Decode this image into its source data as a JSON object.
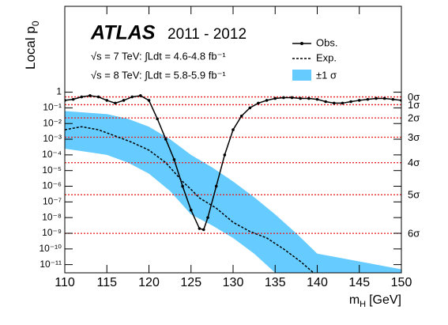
{
  "chart_data": {
    "type": "line",
    "log_y": true,
    "brand": "ATLAS",
    "period": "2011 - 2012",
    "notes": [
      "√s = 7 TeV: ∫Ldt = 4.6-4.8 fb⁻¹",
      "√s = 8 TeV: ∫Ldt = 5.8-5.9 fb⁻¹"
    ],
    "x_label": {
      "main": "m",
      "sub": "H",
      "unit": "[GeV]"
    },
    "y_label": {
      "main": "Local p",
      "sub": "0"
    },
    "xlim": [
      110,
      150
    ],
    "xticks": [
      110,
      115,
      120,
      125,
      130,
      135,
      140,
      145,
      150
    ],
    "ylim": [
      3e-12,
      300000
    ],
    "yticks": [
      1,
      {
        "value": 0.1,
        "label": "10⁻¹"
      },
      {
        "value": 0.01,
        "label": "10⁻²"
      },
      {
        "value": 0.001,
        "label": "10⁻³"
      },
      {
        "value": 0.0001,
        "label": "10⁻⁴"
      },
      {
        "value": 1e-05,
        "label": "10⁻⁵"
      },
      {
        "value": 1e-06,
        "label": "10⁻⁶"
      },
      {
        "value": 1e-07,
        "label": "10⁻⁷"
      },
      {
        "value": 1e-08,
        "label": "10⁻⁸"
      },
      {
        "value": 1e-09,
        "label": "10⁻⁹"
      },
      {
        "value": 1e-10,
        "label": "10⁻¹⁰"
      },
      {
        "value": 1e-11,
        "label": "10⁻¹¹"
      }
    ],
    "sigma_lines": {
      "color": "#e8191c",
      "labels": [
        "0σ",
        "1σ",
        "2σ",
        "3σ",
        "4σ",
        "5σ",
        "6σ"
      ],
      "values": [
        0.5,
        0.1587,
        0.02275,
        0.00135,
        3.17e-05,
        2.87e-07,
        9.87e-10
      ]
    },
    "band": {
      "name": "±1 σ",
      "color": "#66ccff",
      "x": [
        110,
        112.5,
        115,
        117.5,
        120,
        122.5,
        125,
        127.5,
        130,
        132.5,
        135,
        137.5,
        140,
        145,
        150
      ],
      "upper": [
        0.063,
        0.05,
        0.04,
        0.02,
        0.0063,
        0.001,
        0.0001,
        1.6e-05,
        2e-06,
        2e-07,
        1.6e-08,
        1e-09,
        5e-11,
        1.6e-11,
        5e-12
      ],
      "lower": [
        0.00025,
        0.00016,
        0.0001,
        3.2e-05,
        6.3e-06,
        5e-07,
        1.6e-08,
        3.2e-09,
        5e-10,
        5e-11,
        3e-12,
        3e-12,
        3e-12,
        3e-12,
        3e-12
      ]
    },
    "series": [
      {
        "name": "Obs.",
        "color": "#000000",
        "style": "solid",
        "markers": true,
        "x": [
          110,
          111,
          112,
          113,
          114,
          115,
          116,
          117,
          118,
          119,
          120,
          121,
          122,
          123,
          124,
          125,
          126,
          126.5,
          127,
          128,
          129,
          130,
          131,
          132,
          133,
          134,
          135,
          136,
          137,
          138,
          139,
          140,
          141,
          142,
          143,
          144,
          145,
          146,
          147,
          148,
          149,
          150
        ],
        "values": [
          0.3,
          0.35,
          0.5,
          0.6,
          0.5,
          0.3,
          0.2,
          0.3,
          0.5,
          0.6,
          0.3,
          0.02,
          0.001,
          5e-05,
          1e-06,
          3e-08,
          2e-09,
          1.7e-09,
          1e-08,
          1e-06,
          0.0001,
          0.004,
          0.03,
          0.1,
          0.2,
          0.3,
          0.4,
          0.45,
          0.45,
          0.4,
          0.4,
          0.35,
          0.25,
          0.2,
          0.2,
          0.25,
          0.3,
          0.35,
          0.4,
          0.4,
          0.35,
          0.3
        ]
      },
      {
        "name": "Exp.",
        "color": "#000000",
        "style": "dashed",
        "markers": false,
        "x": [
          110,
          112,
          114,
          116,
          118,
          120,
          122,
          124,
          125,
          126,
          128,
          130,
          132,
          134,
          136,
          138,
          139.5
        ],
        "values": [
          0.004,
          0.0063,
          0.004,
          0.0016,
          0.00063,
          0.0002,
          3.2e-05,
          2e-06,
          6.3e-07,
          1.8e-07,
          4e-08,
          5e-09,
          1.3e-09,
          5e-10,
          1e-10,
          1.6e-11,
          3.2e-12
        ]
      }
    ]
  }
}
